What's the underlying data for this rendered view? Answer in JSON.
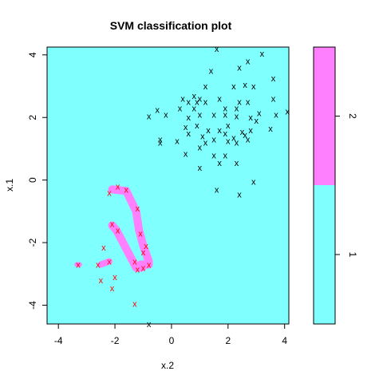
{
  "chart_data": {
    "type": "scatter",
    "title": "SVM classification plot",
    "xlabel": "x.2",
    "ylabel": "x.1",
    "xlim": [
      -4.4,
      4.15
    ],
    "ylim": [
      -4.6,
      4.25
    ],
    "xticks": [
      "-4",
      "-2",
      "0",
      "2",
      "4"
    ],
    "xtick_values": [
      -4,
      -2,
      0,
      2,
      4
    ],
    "yticks": [
      "-4",
      "-2",
      "0",
      "2",
      "4"
    ],
    "ytick_values": [
      -4,
      -2,
      0,
      2,
      4
    ],
    "marker": "x",
    "grid": false,
    "colors": {
      "class_1_region": "#80ffff",
      "class_2_region": "#ff80ff",
      "class_1_points": "#000000",
      "class_2_points": "#ff0000",
      "support_vector_shade": "#ff80ff"
    },
    "legend": {
      "placement": "right",
      "labels": [
        "1",
        "2"
      ],
      "class_2_fraction": 0.5
    },
    "series": [
      {
        "name": "1",
        "points": [
          [
            1.6,
            4.2
          ],
          [
            2.7,
            3.8
          ],
          [
            3.2,
            4.05
          ],
          [
            2.4,
            3.6
          ],
          [
            1.4,
            3.5
          ],
          [
            3.6,
            3.25
          ],
          [
            1.2,
            3.0
          ],
          [
            2.2,
            3.0
          ],
          [
            2.6,
            3.05
          ],
          [
            2.9,
            3.0
          ],
          [
            0.8,
            2.7
          ],
          [
            1.0,
            2.6
          ],
          [
            0.4,
            2.6
          ],
          [
            0.6,
            2.5
          ],
          [
            0.9,
            2.5
          ],
          [
            1.2,
            2.5
          ],
          [
            1.7,
            2.6
          ],
          [
            3.6,
            2.6
          ],
          [
            2.4,
            2.5
          ],
          [
            2.7,
            2.5
          ],
          [
            0.3,
            2.3
          ],
          [
            0.8,
            2.3
          ],
          [
            1.9,
            2.3
          ],
          [
            2.3,
            2.3
          ],
          [
            -0.5,
            2.25
          ],
          [
            -0.2,
            2.1
          ],
          [
            0.6,
            2.0
          ],
          [
            1.0,
            2.1
          ],
          [
            1.5,
            2.1
          ],
          [
            1.9,
            2.1
          ],
          [
            2.3,
            2.05
          ],
          [
            2.8,
            2.0
          ],
          [
            3.1,
            2.15
          ],
          [
            3.7,
            2.1
          ],
          [
            4.1,
            2.2
          ],
          [
            -0.8,
            2.05
          ],
          [
            0.5,
            1.7
          ],
          [
            0.9,
            1.75
          ],
          [
            1.3,
            1.6
          ],
          [
            1.7,
            1.6
          ],
          [
            2.0,
            1.75
          ],
          [
            2.5,
            1.55
          ],
          [
            2.8,
            1.6
          ],
          [
            3.0,
            1.9
          ],
          [
            3.5,
            1.65
          ],
          [
            0.6,
            1.5
          ],
          [
            1.1,
            1.4
          ],
          [
            1.9,
            1.5
          ],
          [
            2.2,
            1.35
          ],
          [
            2.6,
            1.45
          ],
          [
            -0.4,
            1.3
          ],
          [
            0.2,
            1.25
          ],
          [
            1.2,
            1.2
          ],
          [
            1.5,
            1.3
          ],
          [
            2.0,
            1.25
          ],
          [
            2.3,
            1.2
          ],
          [
            2.7,
            1.3
          ],
          [
            -0.4,
            1.2
          ],
          [
            1.0,
            1.05
          ],
          [
            0.5,
            0.85
          ],
          [
            1.5,
            0.8
          ],
          [
            1.9,
            0.8
          ],
          [
            1.7,
            0.55
          ],
          [
            2.3,
            0.55
          ],
          [
            1.0,
            0.4
          ],
          [
            2.9,
            -0.05
          ],
          [
            1.6,
            -0.3
          ],
          [
            2.4,
            -0.45
          ],
          [
            -0.8,
            -4.6
          ]
        ]
      },
      {
        "name": "2",
        "points": [
          [
            -2.2,
            -0.4
          ],
          [
            -1.9,
            -0.2
          ],
          [
            -1.6,
            -0.3
          ],
          [
            -1.2,
            -0.9
          ],
          [
            -2.1,
            -1.4
          ],
          [
            -1.9,
            -1.6
          ],
          [
            -1.1,
            -1.7
          ],
          [
            -0.9,
            -2.1
          ],
          [
            -2.4,
            -2.15
          ],
          [
            -1.0,
            -2.3
          ],
          [
            -2.2,
            -2.6
          ],
          [
            -1.3,
            -2.6
          ],
          [
            -0.8,
            -2.7
          ],
          [
            -1.0,
            -2.8
          ],
          [
            -1.2,
            -2.85
          ],
          [
            -3.3,
            -2.7
          ],
          [
            -2.6,
            -2.7
          ],
          [
            -2.0,
            -3.1
          ],
          [
            -2.5,
            -3.2
          ],
          [
            -2.1,
            -3.45
          ],
          [
            -1.3,
            -3.95
          ]
        ]
      }
    ]
  }
}
